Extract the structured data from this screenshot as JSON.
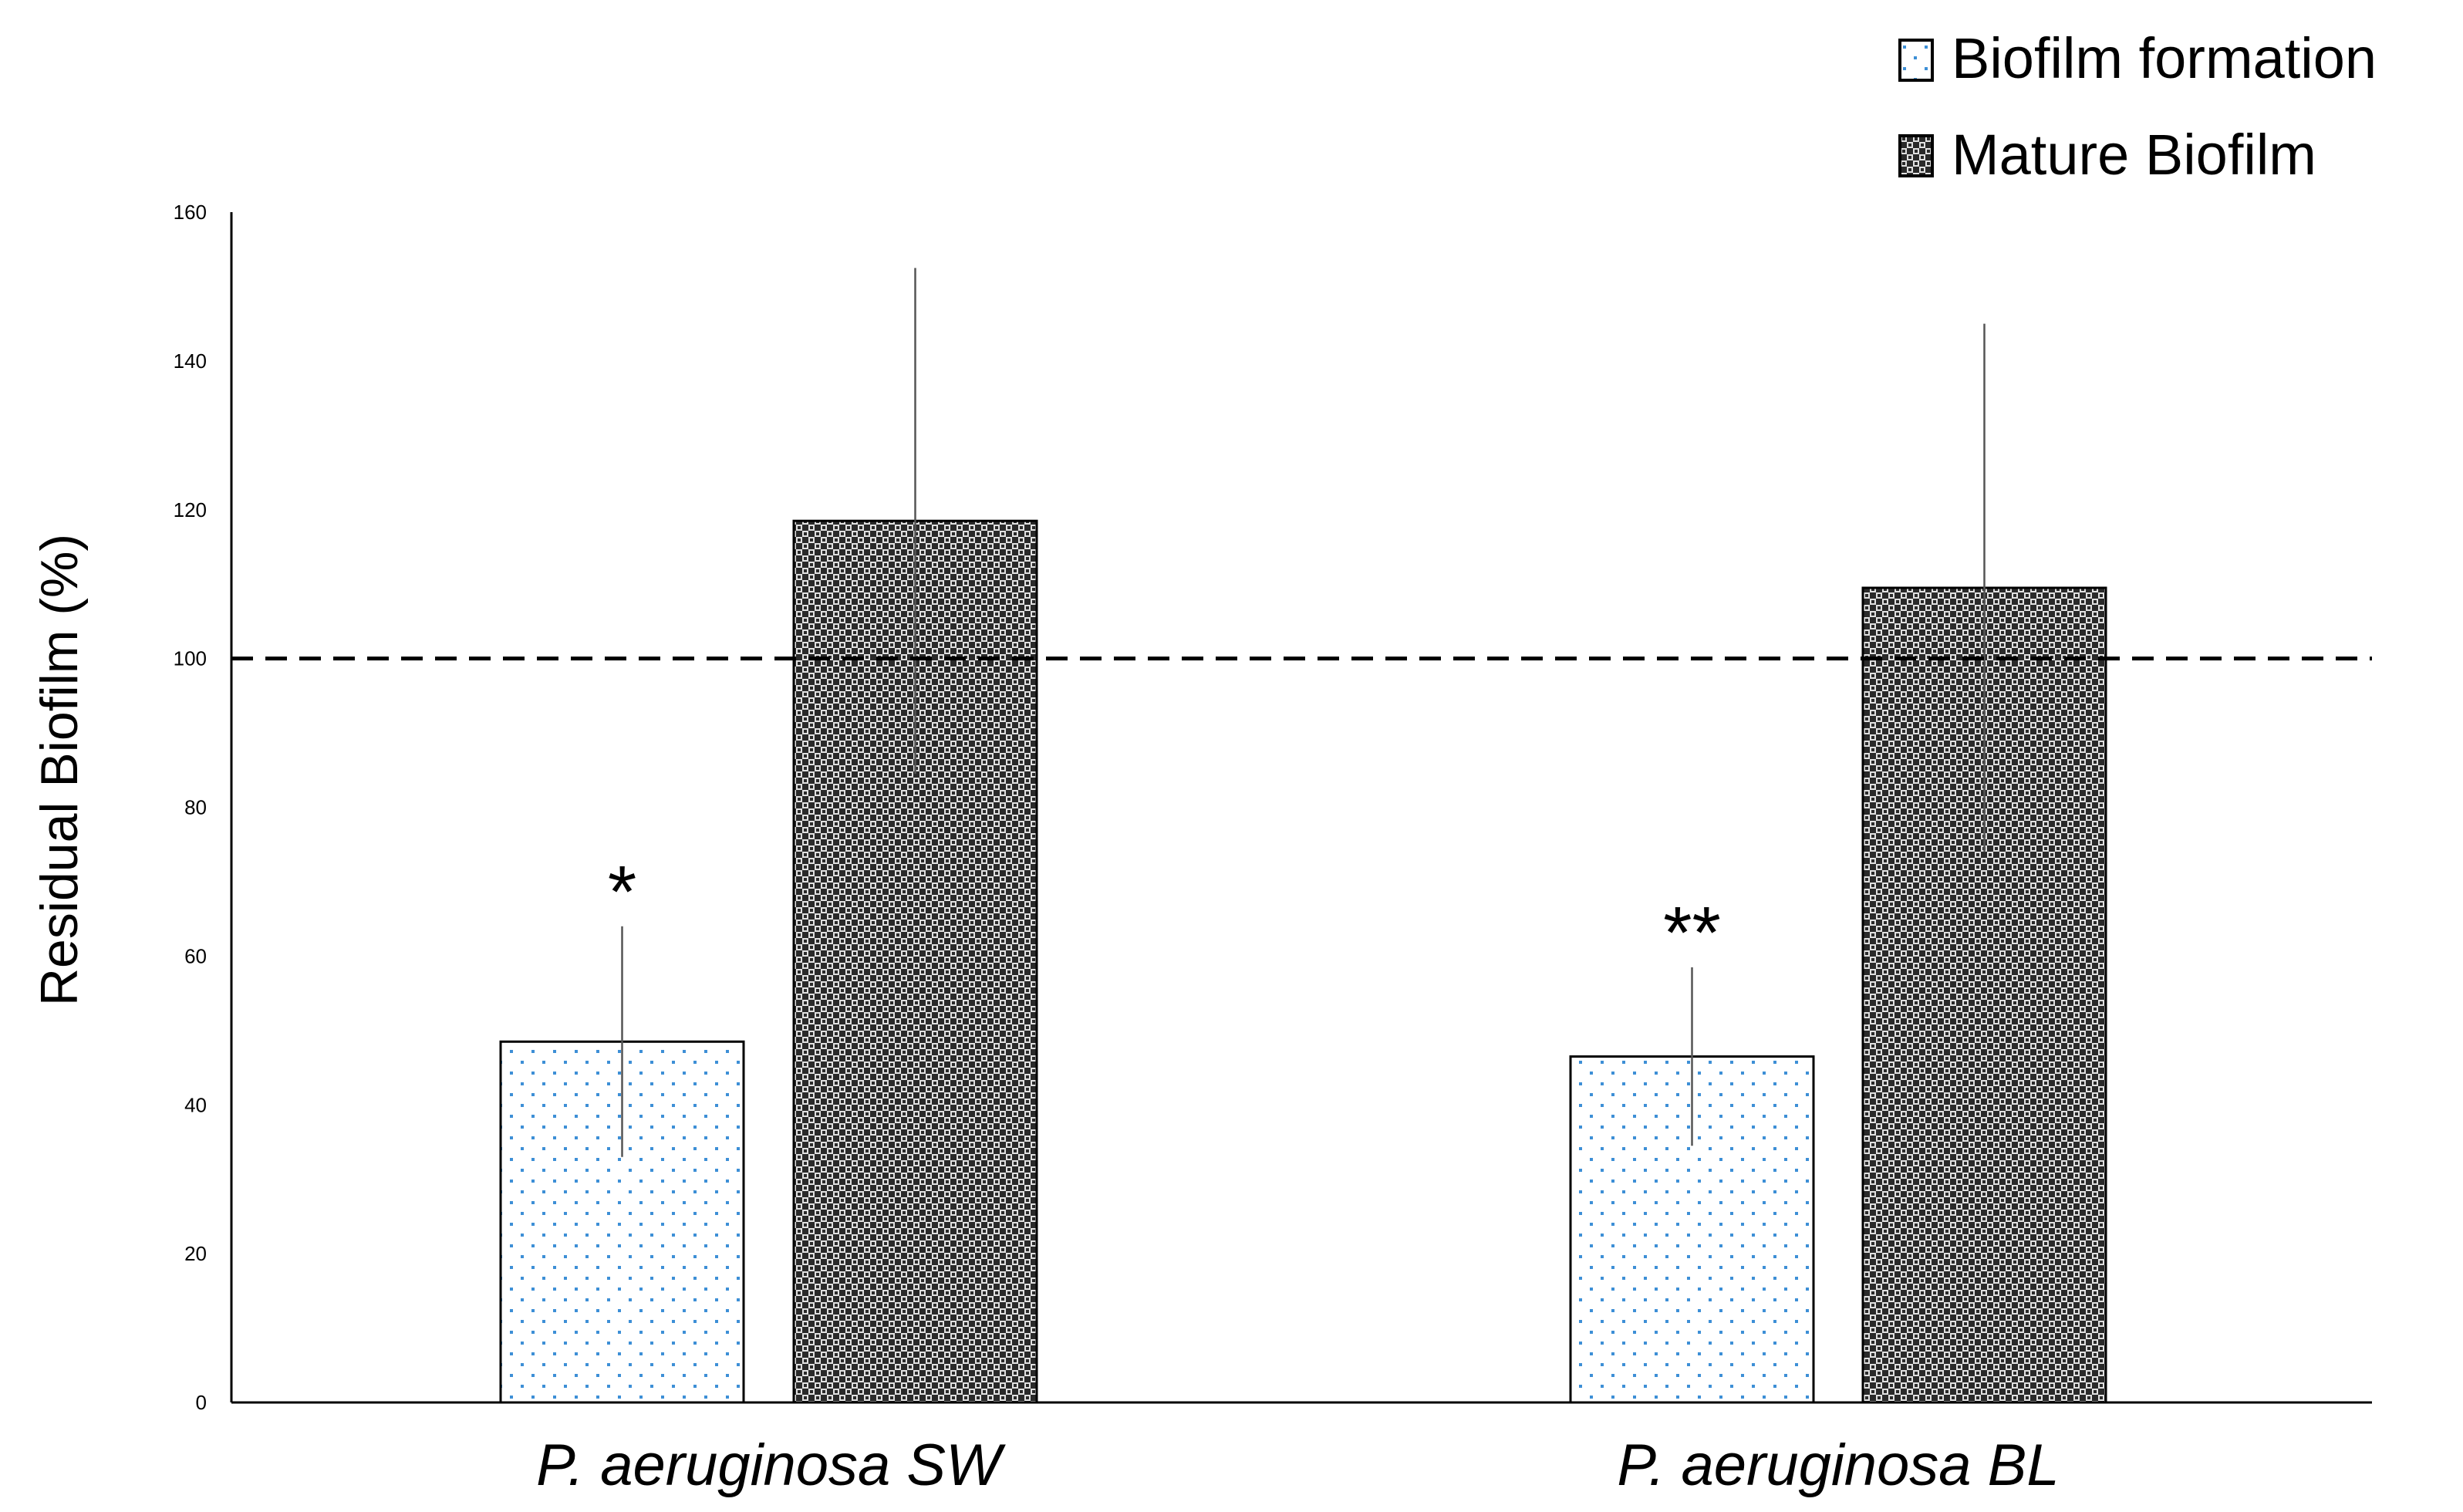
{
  "chart_data": {
    "type": "bar",
    "title": "",
    "xlabel": "",
    "ylabel": "Residual Biofilm (%)",
    "ylim": [
      0,
      160
    ],
    "yticks": [
      0,
      20,
      40,
      60,
      80,
      100,
      120,
      140,
      160
    ],
    "categories": [
      "P. aeruginosa SW",
      "P. aeruginosa BL"
    ],
    "series": [
      {
        "name": "Biofilm formation",
        "values": [
          48.5,
          46.5
        ],
        "errors": [
          15.5,
          12
        ],
        "pattern": "dots",
        "dot_color": "#3d8fd6"
      },
      {
        "name": "Mature Biofilm",
        "values": [
          118.5,
          109.5
        ],
        "errors": [
          34,
          35.5
        ],
        "pattern": "checker"
      }
    ],
    "annotations": [
      {
        "category": 0,
        "series": 0,
        "text": "*"
      },
      {
        "category": 1,
        "series": 0,
        "text": "**"
      }
    ],
    "reference_line": {
      "y": 100,
      "style": "dashed"
    },
    "legend_position": "top-right",
    "grid": false
  }
}
